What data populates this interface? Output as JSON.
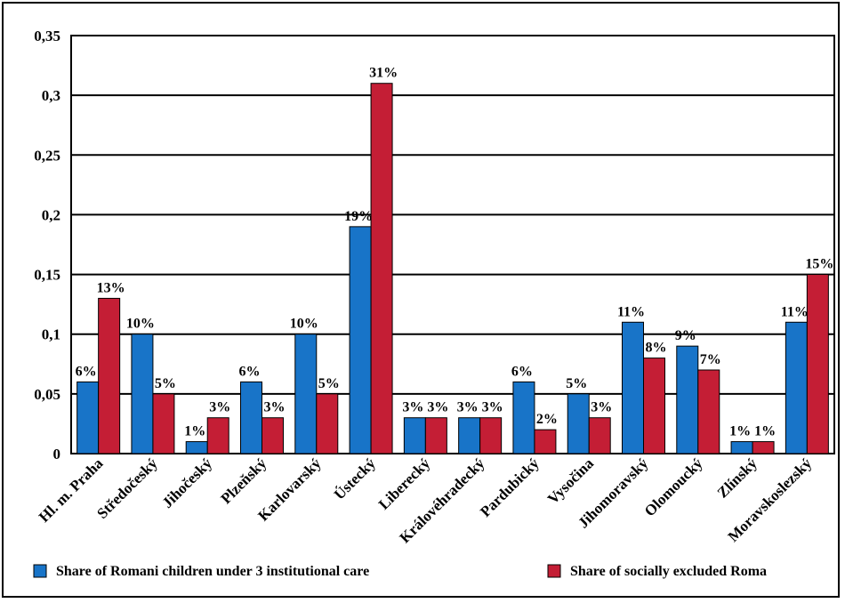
{
  "chart_data": {
    "type": "bar",
    "categories": [
      "Hl. m. Praha",
      "Středočeský",
      "Jihočeský",
      "Plzeňský",
      "Karlovarský",
      "Ústecký",
      "Liberecký",
      "Královéhradecký",
      "Pardubický",
      "Vysočina",
      "Jihomoravský",
      "Olomoucký",
      "Zlínský",
      "Moravskoslezský"
    ],
    "series": [
      {
        "name": "Share of Romani children under 3 institutional care",
        "color": "#1874c8",
        "values": [
          0.06,
          0.1,
          0.01,
          0.06,
          0.1,
          0.19,
          0.03,
          0.03,
          0.06,
          0.05,
          0.11,
          0.09,
          0.01,
          0.11
        ],
        "labels": [
          "6%",
          "10%",
          "1%",
          "6%",
          "10%",
          "19%",
          "3%",
          "3%",
          "6%",
          "5%",
          "11%",
          "9%",
          "1%",
          "11%"
        ]
      },
      {
        "name": "Share of socially excluded Roma",
        "color": "#c41e35",
        "values": [
          0.13,
          0.05,
          0.03,
          0.03,
          0.05,
          0.31,
          0.03,
          0.03,
          0.02,
          0.03,
          0.08,
          0.07,
          0.01,
          0.15
        ],
        "labels": [
          "13%",
          "5%",
          "3%",
          "3%",
          "5%",
          "31%",
          "3%",
          "3%",
          "2%",
          "3%",
          "8%",
          "7%",
          "1%",
          "15%"
        ]
      }
    ],
    "ylim": [
      0,
      0.35
    ],
    "yticks": [
      "0",
      "0,05",
      "0,1",
      "0,15",
      "0,2",
      "0,25",
      "0,3",
      "0,35"
    ],
    "ytick_values": [
      0,
      0.05,
      0.1,
      0.15,
      0.2,
      0.25,
      0.3,
      0.35
    ],
    "grid": true,
    "legend_position": "bottom"
  }
}
